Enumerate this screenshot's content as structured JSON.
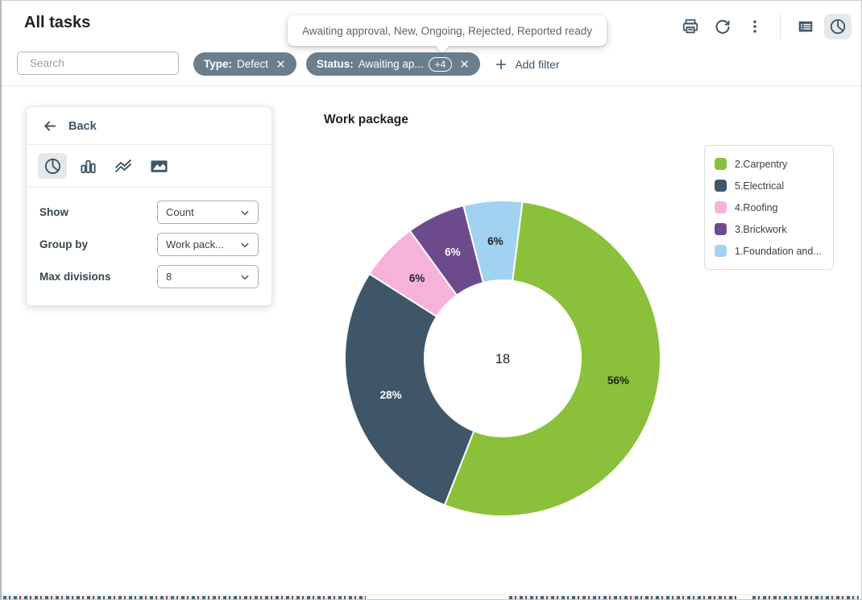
{
  "header": {
    "title": "All tasks",
    "actions": [
      "print-icon",
      "refresh-icon",
      "kebab-menu-icon"
    ],
    "view_toggle": {
      "options": [
        "table-view-icon",
        "pie-chart-view-icon"
      ],
      "selected": "pie-chart-view-icon"
    }
  },
  "tooltip": {
    "text": "Awaiting approval, New, Ongoing, Rejected, Reported ready"
  },
  "filters": {
    "search_placeholder": "Search",
    "chips": [
      {
        "label": "Type:",
        "value": "Defect"
      },
      {
        "label": "Status:",
        "value": "Awaiting ap...",
        "overflow_badge": "+4"
      }
    ],
    "add_filter_label": "Add filter"
  },
  "panel": {
    "back_label": "Back",
    "chart_types": {
      "options": [
        "pie-chart-icon",
        "bar-chart-icon",
        "line-chart-icon",
        "area-chart-icon"
      ],
      "selected": "pie-chart-icon"
    },
    "fields": [
      {
        "label": "Show",
        "value": "Count"
      },
      {
        "label": "Group by",
        "value": "Work pack..."
      },
      {
        "label": "Max divisions",
        "value": "8"
      }
    ]
  },
  "chart_data": {
    "type": "pie",
    "variant": "donut",
    "title": "Work package",
    "center_total": "18",
    "legend_position": "right",
    "series": [
      {
        "name": "2.Carpentry",
        "percent": 56,
        "color": "#8bc13a",
        "label_color": "#212121"
      },
      {
        "name": "5.Electrical",
        "percent": 28,
        "color": "#3e5668",
        "label_color": "#ffffff"
      },
      {
        "name": "4.Roofing",
        "percent": 6,
        "color": "#f7b2da",
        "label_color": "#212121"
      },
      {
        "name": "3.Brickwork",
        "percent": 6,
        "color": "#6d4a8c",
        "label_color": "#ffffff"
      },
      {
        "name": "1.Foundation and...",
        "percent": 6,
        "color": "#a2d2f2",
        "label_color": "#212121"
      }
    ]
  },
  "colors": {
    "accent_slate": "#3e5668",
    "chip_background": "#6a7f8d",
    "selected_icon_background": "#e5e9ec"
  }
}
